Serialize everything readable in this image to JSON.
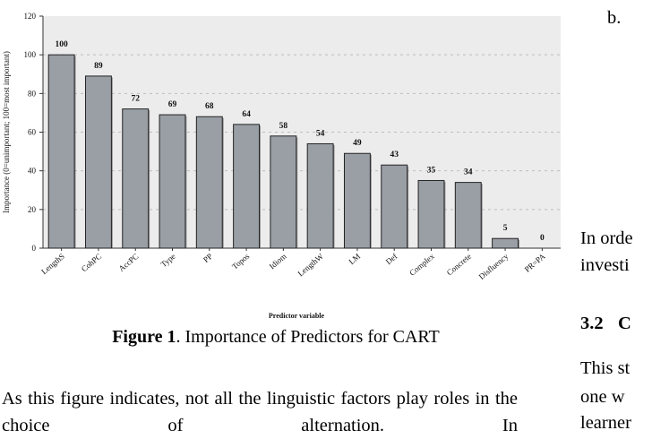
{
  "chart_data": {
    "type": "bar",
    "categories": [
      "LengthS",
      "CohPC",
      "AccPC",
      "Type",
      "PP",
      "Topos",
      "Idiom",
      "LengthW",
      "LM",
      "Def",
      "Complex",
      "Concrete",
      "Disfluency",
      "PR=PA"
    ],
    "values": [
      100,
      89,
      72,
      69,
      68,
      64,
      58,
      54,
      49,
      43,
      35,
      34,
      5,
      0
    ],
    "ylabel": "Importance (0=unimportant; 100=most important)",
    "xlabel": "Predictor variable",
    "ylim": [
      0,
      120
    ],
    "yticks": [
      0,
      20,
      40,
      60,
      80,
      100,
      120
    ],
    "grid": true,
    "colors": {
      "plot_bg": "#ececec",
      "bar": "#9a9fa6",
      "bar_border": "#222222",
      "grid": "#bdbdbd"
    }
  },
  "caption": {
    "label": "Figure 1",
    "text": ". Importance of Predictors for CART"
  },
  "body": {
    "paragraph": "As this figure indicates, not all the linguistic factors play roles in the choice of alternation. In"
  },
  "right_column": {
    "item_b": "b.",
    "line1": "In orde",
    "line2": "investi",
    "section_num": "3.2",
    "section_title": "C",
    "line3": "This st",
    "line4": "one w",
    "line5": "learner"
  }
}
